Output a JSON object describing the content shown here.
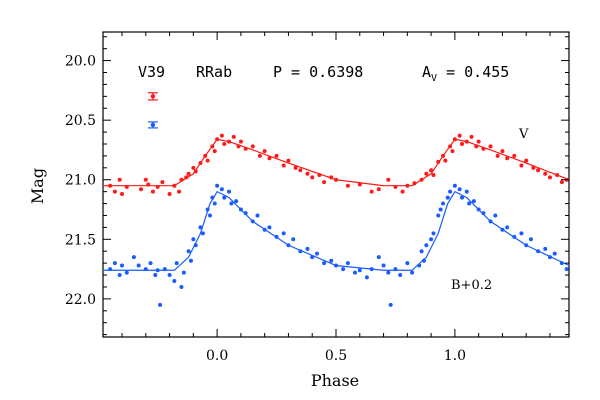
{
  "chart_data": {
    "type": "scatter",
    "xlabel": "Phase",
    "ylabel": "Mag",
    "xlim": [
      -0.48,
      1.48
    ],
    "ylim": [
      22.32,
      19.76
    ],
    "x_ticks": [
      0.0,
      0.5,
      1.0
    ],
    "x_tick_labels": [
      "0.0",
      "0.5",
      "1.0"
    ],
    "y_ticks": [
      20.0,
      20.5,
      21.0,
      21.5,
      22.0
    ],
    "y_tick_labels": [
      "20.0",
      "20.5",
      "21.0",
      "21.5",
      "22.0"
    ],
    "header": {
      "star": "V39",
      "type": "RRab",
      "period": "P = 0.6398",
      "amp_label": "A",
      "amp_sub": "V",
      "amp_value": " = 0.455"
    },
    "annotations": {
      "v_label": "V",
      "b_label": "B+0.2"
    },
    "colors": {
      "V": "#ff1a1a",
      "B": "#1a5cff",
      "axis": "#000000"
    },
    "error_bars": [
      {
        "series": "V",
        "phase": -0.27,
        "mag": 20.3,
        "err": 0.03
      },
      {
        "series": "B",
        "phase": -0.27,
        "mag": 20.54,
        "err": 0.025
      }
    ],
    "series": [
      {
        "name": "V",
        "curve": [
          [
            -0.48,
            21.05
          ],
          [
            -0.3,
            21.05
          ],
          [
            -0.18,
            21.05
          ],
          [
            -0.1,
            20.95
          ],
          [
            -0.05,
            20.8
          ],
          [
            0.0,
            20.66
          ],
          [
            0.05,
            20.68
          ],
          [
            0.15,
            20.75
          ],
          [
            0.3,
            20.86
          ],
          [
            0.5,
            21.0
          ],
          [
            0.7,
            21.05
          ],
          [
            0.82,
            21.05
          ],
          [
            0.9,
            20.95
          ],
          [
            0.95,
            20.8
          ],
          [
            1.0,
            20.66
          ],
          [
            1.05,
            20.68
          ],
          [
            1.15,
            20.75
          ],
          [
            1.3,
            20.86
          ],
          [
            1.48,
            21.0
          ]
        ],
        "points": [
          [
            -0.45,
            21.05
          ],
          [
            -0.43,
            21.1
          ],
          [
            -0.41,
            21.0
          ],
          [
            -0.4,
            21.12
          ],
          [
            -0.38,
            21.06
          ],
          [
            -0.32,
            21.08
          ],
          [
            -0.3,
            21.0
          ],
          [
            -0.29,
            21.04
          ],
          [
            -0.27,
            21.1
          ],
          [
            -0.25,
            21.06
          ],
          [
            -0.23,
            21.02
          ],
          [
            -0.2,
            21.12
          ],
          [
            -0.18,
            21.05
          ],
          [
            -0.16,
            21.1
          ],
          [
            -0.15,
            21.0
          ],
          [
            -0.13,
            20.98
          ],
          [
            -0.12,
            20.95
          ],
          [
            -0.1,
            20.9
          ],
          [
            -0.09,
            20.93
          ],
          [
            -0.07,
            20.86
          ],
          [
            -0.05,
            20.8
          ],
          [
            -0.04,
            20.84
          ],
          [
            -0.02,
            20.72
          ],
          [
            -0.01,
            20.76
          ],
          [
            0.0,
            20.66
          ],
          [
            0.02,
            20.63
          ],
          [
            0.03,
            20.7
          ],
          [
            0.05,
            20.68
          ],
          [
            0.07,
            20.64
          ],
          [
            0.09,
            20.72
          ],
          [
            0.1,
            20.68
          ],
          [
            0.12,
            20.74
          ],
          [
            0.15,
            20.72
          ],
          [
            0.18,
            20.8
          ],
          [
            0.2,
            20.76
          ],
          [
            0.22,
            20.82
          ],
          [
            0.25,
            20.8
          ],
          [
            0.28,
            20.88
          ],
          [
            0.3,
            20.84
          ],
          [
            0.33,
            20.9
          ],
          [
            0.35,
            20.92
          ],
          [
            0.38,
            20.95
          ],
          [
            0.4,
            20.98
          ],
          [
            0.43,
            20.96
          ],
          [
            0.45,
            21.02
          ],
          [
            0.48,
            20.98
          ],
          [
            0.5,
            21.0
          ],
          [
            0.55,
            21.05
          ],
          [
            0.6,
            21.04
          ],
          [
            0.65,
            21.1
          ],
          [
            0.68,
            21.08
          ],
          [
            0.72,
            21.0
          ],
          [
            0.75,
            21.06
          ],
          [
            0.78,
            21.1
          ],
          [
            0.8,
            21.05
          ],
          [
            0.83,
            21.03
          ],
          [
            0.86,
            21.0
          ],
          [
            0.88,
            20.95
          ],
          [
            0.9,
            20.92
          ],
          [
            0.91,
            20.96
          ],
          [
            0.93,
            20.85
          ],
          [
            0.95,
            20.8
          ],
          [
            0.96,
            20.84
          ],
          [
            0.98,
            20.72
          ],
          [
            0.99,
            20.76
          ],
          [
            1.0,
            20.66
          ],
          [
            1.02,
            20.63
          ],
          [
            1.03,
            20.7
          ],
          [
            1.05,
            20.68
          ],
          [
            1.07,
            20.64
          ],
          [
            1.09,
            20.72
          ],
          [
            1.1,
            20.68
          ],
          [
            1.12,
            20.74
          ],
          [
            1.15,
            20.72
          ],
          [
            1.18,
            20.8
          ],
          [
            1.2,
            20.76
          ],
          [
            1.22,
            20.82
          ],
          [
            1.25,
            20.8
          ],
          [
            1.28,
            20.88
          ],
          [
            1.3,
            20.84
          ],
          [
            1.33,
            20.9
          ],
          [
            1.35,
            20.92
          ],
          [
            1.38,
            20.95
          ],
          [
            1.4,
            20.98
          ],
          [
            1.43,
            20.96
          ],
          [
            1.45,
            21.02
          ],
          [
            1.47,
            21.0
          ]
        ]
      },
      {
        "name": "B+0.2",
        "curve": [
          [
            -0.48,
            21.76
          ],
          [
            -0.3,
            21.76
          ],
          [
            -0.18,
            21.76
          ],
          [
            -0.12,
            21.65
          ],
          [
            -0.07,
            21.45
          ],
          [
            -0.03,
            21.2
          ],
          [
            0.0,
            21.1
          ],
          [
            0.05,
            21.15
          ],
          [
            0.15,
            21.35
          ],
          [
            0.3,
            21.55
          ],
          [
            0.5,
            21.72
          ],
          [
            0.7,
            21.76
          ],
          [
            0.82,
            21.76
          ],
          [
            0.88,
            21.65
          ],
          [
            0.93,
            21.45
          ],
          [
            0.97,
            21.2
          ],
          [
            1.0,
            21.1
          ],
          [
            1.05,
            21.15
          ],
          [
            1.15,
            21.35
          ],
          [
            1.3,
            21.55
          ],
          [
            1.48,
            21.72
          ]
        ],
        "points": [
          [
            -0.45,
            21.75
          ],
          [
            -0.43,
            21.7
          ],
          [
            -0.41,
            21.8
          ],
          [
            -0.4,
            21.72
          ],
          [
            -0.38,
            21.78
          ],
          [
            -0.35,
            21.65
          ],
          [
            -0.33,
            21.72
          ],
          [
            -0.3,
            21.75
          ],
          [
            -0.28,
            21.7
          ],
          [
            -0.26,
            21.8
          ],
          [
            -0.25,
            21.76
          ],
          [
            -0.24,
            22.05
          ],
          [
            -0.22,
            21.75
          ],
          [
            -0.2,
            21.8
          ],
          [
            -0.18,
            21.85
          ],
          [
            -0.17,
            21.7
          ],
          [
            -0.15,
            21.9
          ],
          [
            -0.14,
            21.78
          ],
          [
            -0.12,
            21.6
          ],
          [
            -0.11,
            21.68
          ],
          [
            -0.1,
            21.5
          ],
          [
            -0.09,
            21.55
          ],
          [
            -0.07,
            21.4
          ],
          [
            -0.06,
            21.45
          ],
          [
            -0.04,
            21.25
          ],
          [
            -0.03,
            21.3
          ],
          [
            -0.02,
            21.15
          ],
          [
            -0.01,
            21.2
          ],
          [
            0.0,
            21.05
          ],
          [
            0.02,
            21.08
          ],
          [
            0.03,
            21.15
          ],
          [
            0.05,
            21.1
          ],
          [
            0.06,
            21.2
          ],
          [
            0.08,
            21.18
          ],
          [
            0.1,
            21.25
          ],
          [
            0.12,
            21.28
          ],
          [
            0.15,
            21.35
          ],
          [
            0.17,
            21.3
          ],
          [
            0.2,
            21.42
          ],
          [
            0.22,
            21.4
          ],
          [
            0.25,
            21.48
          ],
          [
            0.28,
            21.45
          ],
          [
            0.3,
            21.55
          ],
          [
            0.32,
            21.5
          ],
          [
            0.35,
            21.6
          ],
          [
            0.38,
            21.58
          ],
          [
            0.4,
            21.65
          ],
          [
            0.42,
            21.62
          ],
          [
            0.45,
            21.7
          ],
          [
            0.48,
            21.68
          ],
          [
            0.5,
            21.72
          ],
          [
            0.53,
            21.75
          ],
          [
            0.55,
            21.7
          ],
          [
            0.58,
            21.78
          ],
          [
            0.6,
            21.76
          ],
          [
            0.63,
            21.82
          ],
          [
            0.65,
            21.75
          ],
          [
            0.68,
            21.65
          ],
          [
            0.7,
            21.72
          ],
          [
            0.72,
            21.78
          ],
          [
            0.73,
            22.05
          ],
          [
            0.75,
            21.75
          ],
          [
            0.77,
            21.8
          ],
          [
            0.8,
            21.7
          ],
          [
            0.82,
            21.78
          ],
          [
            0.85,
            21.72
          ],
          [
            0.86,
            21.6
          ],
          [
            0.87,
            21.68
          ],
          [
            0.88,
            21.55
          ],
          [
            0.9,
            21.5
          ],
          [
            0.91,
            21.45
          ],
          [
            0.93,
            21.3
          ],
          [
            0.94,
            21.25
          ],
          [
            0.95,
            21.2
          ],
          [
            0.97,
            21.15
          ],
          [
            0.98,
            21.1
          ],
          [
            1.0,
            21.05
          ],
          [
            1.02,
            21.08
          ],
          [
            1.03,
            21.15
          ],
          [
            1.05,
            21.1
          ],
          [
            1.06,
            21.2
          ],
          [
            1.08,
            21.18
          ],
          [
            1.1,
            21.25
          ],
          [
            1.12,
            21.28
          ],
          [
            1.15,
            21.35
          ],
          [
            1.17,
            21.3
          ],
          [
            1.2,
            21.42
          ],
          [
            1.22,
            21.4
          ],
          [
            1.25,
            21.48
          ],
          [
            1.28,
            21.45
          ],
          [
            1.3,
            21.55
          ],
          [
            1.32,
            21.5
          ],
          [
            1.35,
            21.6
          ],
          [
            1.38,
            21.58
          ],
          [
            1.4,
            21.65
          ],
          [
            1.42,
            21.62
          ],
          [
            1.45,
            21.7
          ],
          [
            1.47,
            21.75
          ]
        ]
      }
    ]
  }
}
